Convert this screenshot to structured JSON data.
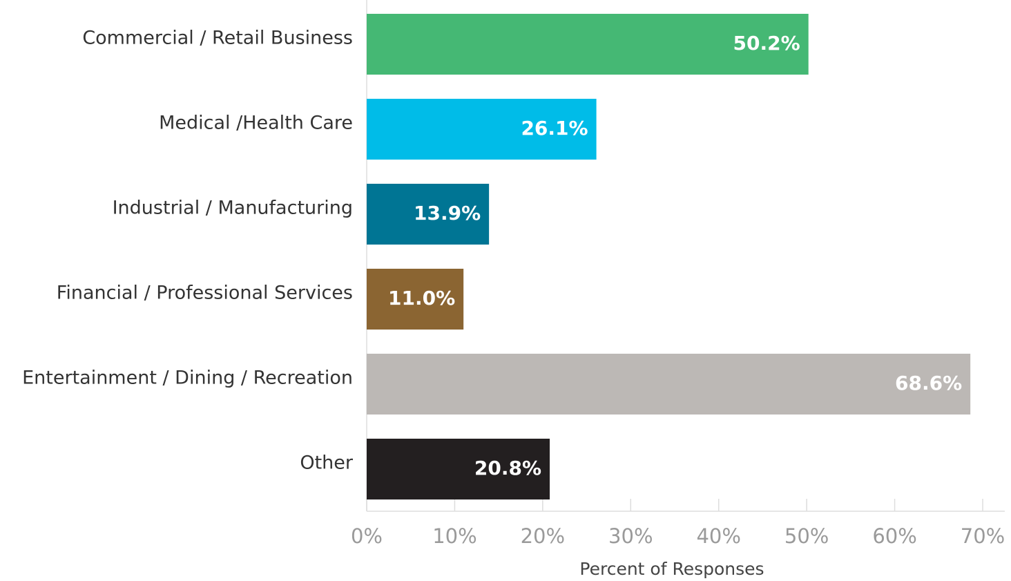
{
  "chart_data": {
    "type": "bar",
    "orientation": "horizontal",
    "categories": [
      "Commercial / Retail Business",
      "Medical /Health Care",
      "Industrial / Manufacturing",
      "Financial / Professional Services",
      "Entertainment / Dining / Recreation",
      "Other"
    ],
    "values": [
      50.2,
      26.1,
      13.9,
      11.0,
      68.6,
      20.8
    ],
    "value_labels": [
      "50.2%",
      "26.1%",
      "13.9%",
      "11.0%",
      "68.6%",
      "20.8%"
    ],
    "colors": [
      "#45b874",
      "#00bce8",
      "#007594",
      "#8b6532",
      "#bcb8b5",
      "#231f20"
    ],
    "xlabel": "Percent of Responses",
    "xlim": [
      0,
      70
    ],
    "xticks": [
      {
        "value": 0,
        "label": "0%"
      },
      {
        "value": 10,
        "label": "10%"
      },
      {
        "value": 20,
        "label": "20%"
      },
      {
        "value": 30,
        "label": "30%"
      },
      {
        "value": 40,
        "label": "40%"
      },
      {
        "value": 50,
        "label": "50%"
      },
      {
        "value": 60,
        "label": "60%"
      },
      {
        "value": 70,
        "label": "70%"
      }
    ]
  }
}
